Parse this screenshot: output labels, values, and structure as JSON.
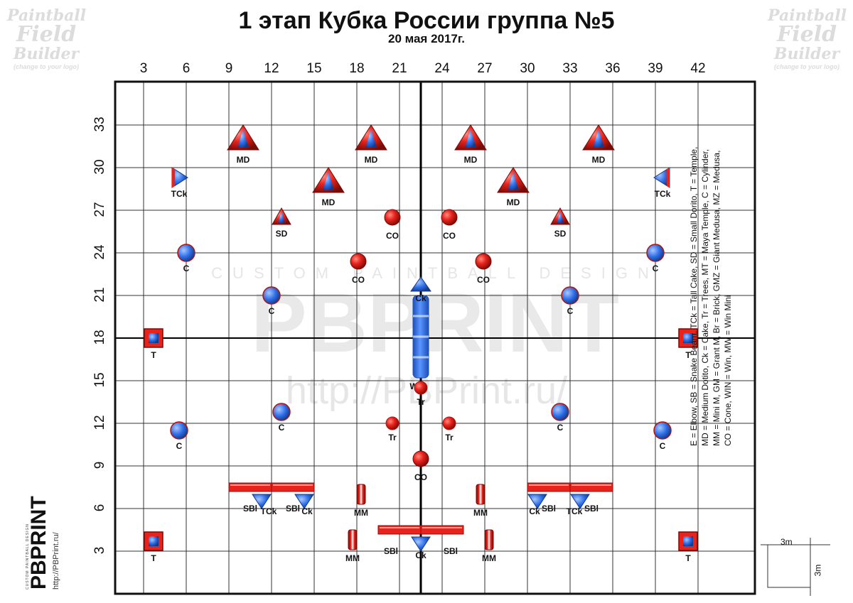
{
  "header": {
    "title": "1 этап Кубка России группа №5",
    "subtitle": "20 мая 2017г."
  },
  "watermark_corner": {
    "line1": "Paintball",
    "line2": "Field",
    "line3": "Builder",
    "line4": "(change to your logo)"
  },
  "watermark_center": {
    "tagline": "CUSTOM PAINTBALL DESIGN",
    "brand": "PBPRINT",
    "url": "http://PBPrint.ru/"
  },
  "axes": {
    "x_ticks": [
      "3",
      "6",
      "9",
      "12",
      "15",
      "18",
      "21",
      "24",
      "27",
      "30",
      "33",
      "36",
      "39",
      "42"
    ],
    "y_ticks": [
      "33",
      "30",
      "27",
      "24",
      "21",
      "18",
      "15",
      "12",
      "9",
      "6",
      "3"
    ]
  },
  "legend": {
    "line1": "E = Elbow, SB = Snake Beam, TCk = Tall Cake, SD = Small Dorito, T = Temple,",
    "line2": "MD = Medium Dotito, Ck = Cake, Tr = Trees, MT = Maya Temple, C = Cylinder,",
    "line3": "MM = Mini M, GM = Grant M, Br = Brick, GMZ = Giant Medusa, MZ = Medusa,",
    "line4": "CO = Cone, WIN = Win, MW = Win Mini"
  },
  "scale": {
    "width_label": "3m",
    "height_label": "3m"
  },
  "brand_block": {
    "name": "PBPRINT",
    "tagline": "CUSTOM PAINTBALL DESIGN",
    "url": "http://PBPrint.ru/"
  },
  "colors": {
    "red": "#e8231c",
    "blue": "#2f6fe8",
    "grid": "#333333",
    "border": "#111111"
  },
  "bunkers": [
    {
      "type": "MD",
      "label": "MD",
      "x": 10,
      "y": 32
    },
    {
      "type": "MD",
      "label": "MD",
      "x": 19,
      "y": 32
    },
    {
      "type": "MD",
      "label": "MD",
      "x": 26,
      "y": 32
    },
    {
      "type": "MD",
      "label": "MD",
      "x": 35,
      "y": 32
    },
    {
      "type": "MD",
      "label": "MD",
      "x": 16,
      "y": 29
    },
    {
      "type": "MD",
      "label": "MD",
      "x": 29,
      "y": 29
    },
    {
      "type": "TCk",
      "label": "TCk",
      "x": 5.5,
      "y": 29.3,
      "dir": "right"
    },
    {
      "type": "TCk",
      "label": "TCk",
      "x": 39.5,
      "y": 29.3,
      "dir": "left"
    },
    {
      "type": "SD",
      "label": "SD",
      "x": 12.7,
      "y": 26.5
    },
    {
      "type": "SD",
      "label": "SD",
      "x": 32.3,
      "y": 26.5
    },
    {
      "type": "CO",
      "label": "CO",
      "x": 20.5,
      "y": 26.5
    },
    {
      "type": "CO",
      "label": "CO",
      "x": 24.5,
      "y": 26.5
    },
    {
      "type": "CO",
      "label": "CO",
      "x": 18.1,
      "y": 23.4
    },
    {
      "type": "CO",
      "label": "CO",
      "x": 26.9,
      "y": 23.4
    },
    {
      "type": "C",
      "label": "C",
      "x": 6,
      "y": 24
    },
    {
      "type": "C",
      "label": "C",
      "x": 39,
      "y": 24
    },
    {
      "type": "C",
      "label": "C",
      "x": 12,
      "y": 21
    },
    {
      "type": "C",
      "label": "C",
      "x": 33,
      "y": 21
    },
    {
      "type": "Ck",
      "label": "Ck",
      "x": 22.5,
      "y": 21.6,
      "dir": "up"
    },
    {
      "type": "T",
      "label": "T",
      "x": 3.7,
      "y": 18
    },
    {
      "type": "T",
      "label": "T",
      "x": 41.3,
      "y": 18
    },
    {
      "type": "Tr",
      "label": "Tr",
      "x": 22.5,
      "y": 14.5
    },
    {
      "type": "C",
      "label": "C",
      "x": 12.7,
      "y": 12.8
    },
    {
      "type": "C",
      "label": "C",
      "x": 32.3,
      "y": 12.8
    },
    {
      "type": "C",
      "label": "C",
      "x": 5.5,
      "y": 11.5
    },
    {
      "type": "C",
      "label": "C",
      "x": 39.5,
      "y": 11.5
    },
    {
      "type": "Tr",
      "label": "Tr",
      "x": 20.5,
      "y": 12
    },
    {
      "type": "Tr",
      "label": "Tr",
      "x": 24.5,
      "y": 12
    },
    {
      "type": "CO",
      "label": "CO",
      "x": 22.5,
      "y": 9.5
    },
    {
      "type": "MM",
      "label": "MM",
      "x": 18.3,
      "y": 7
    },
    {
      "type": "MM",
      "label": "MM",
      "x": 26.7,
      "y": 7
    },
    {
      "type": "MM",
      "label": "MM",
      "x": 17.7,
      "y": 3.8
    },
    {
      "type": "MM",
      "label": "MM",
      "x": 27.3,
      "y": 3.8
    },
    {
      "type": "T",
      "label": "T",
      "x": 3.7,
      "y": 3.7
    },
    {
      "type": "T",
      "label": "T",
      "x": 41.3,
      "y": 3.7
    }
  ],
  "beams": [
    {
      "label": "SBl",
      "x1": 9,
      "x2": 12,
      "y": 7.5,
      "label_x": 10.5,
      "label_y": 5.8
    },
    {
      "label": "SBl",
      "x1": 12,
      "x2": 15,
      "y": 7.5,
      "label_x": 13.5,
      "label_y": 5.8
    },
    {
      "label": "SBl",
      "x1": 30,
      "x2": 33,
      "y": 7.5,
      "label_x": 31.5,
      "label_y": 5.8
    },
    {
      "label": "SBl",
      "x1": 33,
      "x2": 36,
      "y": 7.5,
      "label_x": 34.5,
      "label_y": 5.8
    },
    {
      "label": "SBl",
      "x1": 19.5,
      "x2": 22.5,
      "y": 4.5,
      "label_x": 20.4,
      "label_y": 2.8
    },
    {
      "label": "SBl",
      "x1": 22.5,
      "x2": 25.5,
      "y": 4.5,
      "label_x": 24.6,
      "label_y": 2.8
    }
  ],
  "beam_cakes": [
    {
      "label": "TCk",
      "x": 11.3,
      "y": 6.5,
      "label_x": 11.8,
      "label_y": 5.6
    },
    {
      "label": "Ck",
      "x": 14.3,
      "y": 6.5,
      "label_x": 14.5,
      "label_y": 5.6
    },
    {
      "label": "Ck",
      "x": 30.7,
      "y": 6.5,
      "label_x": 30.5,
      "label_y": 5.6
    },
    {
      "label": "TCk",
      "x": 33.7,
      "y": 6.5,
      "label_x": 33.3,
      "label_y": 5.6
    },
    {
      "label": "Ck",
      "x": 22.5,
      "y": 3.5,
      "label_x": 22.5,
      "label_y": 2.5
    }
  ],
  "center_column": {
    "label": "WIN",
    "x": 22.5,
    "y_top": 21,
    "y_bottom": 15.2
  }
}
